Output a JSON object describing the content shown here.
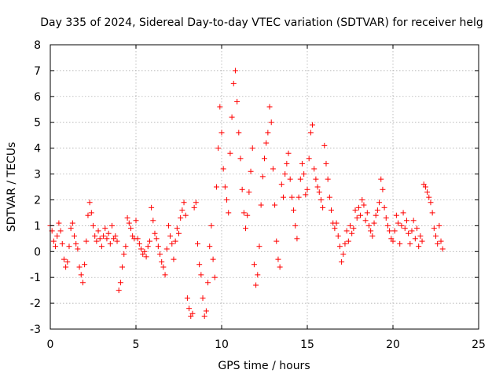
{
  "chart_data": {
    "type": "scatter",
    "title": "Day 335 of 2024, Sidereal Day-to-day VTEC variation (SDTVAR) for receiver helg",
    "xlabel": "GPS time / hours",
    "ylabel": "SDTVAR / TECUs",
    "xlim": [
      0,
      25
    ],
    "ylim": [
      -3,
      8
    ],
    "xticks": [
      "0",
      "5",
      "10",
      "15",
      "20",
      "25"
    ],
    "yticks": [
      "-3",
      "-2",
      "-1",
      "0",
      "1",
      "2",
      "3",
      "4",
      "5",
      "6",
      "7",
      "8"
    ],
    "grid": true,
    "marker": "+",
    "color": "#ff0000",
    "series": [
      {
        "name": "SDTVAR",
        "points": [
          [
            0.0,
            1.0
          ],
          [
            0.1,
            0.8
          ],
          [
            0.2,
            0.4
          ],
          [
            0.3,
            0.2
          ],
          [
            0.4,
            0.6
          ],
          [
            0.5,
            1.1
          ],
          [
            0.6,
            0.8
          ],
          [
            0.7,
            0.3
          ],
          [
            0.8,
            -0.3
          ],
          [
            0.9,
            -0.6
          ],
          [
            1.0,
            -0.4
          ],
          [
            1.1,
            0.2
          ],
          [
            1.2,
            0.9
          ],
          [
            1.3,
            1.1
          ],
          [
            1.4,
            0.6
          ],
          [
            1.5,
            0.3
          ],
          [
            1.6,
            0.1
          ],
          [
            1.7,
            -0.6
          ],
          [
            1.8,
            -0.9
          ],
          [
            1.9,
            -1.2
          ],
          [
            2.0,
            -0.5
          ],
          [
            2.1,
            0.4
          ],
          [
            2.2,
            1.4
          ],
          [
            2.3,
            1.9
          ],
          [
            2.4,
            1.5
          ],
          [
            2.5,
            1.0
          ],
          [
            2.6,
            0.6
          ],
          [
            2.7,
            0.4
          ],
          [
            2.8,
            0.8
          ],
          [
            2.9,
            0.5
          ],
          [
            3.0,
            0.2
          ],
          [
            3.1,
            0.6
          ],
          [
            3.2,
            0.9
          ],
          [
            3.3,
            0.5
          ],
          [
            3.4,
            0.7
          ],
          [
            3.5,
            0.3
          ],
          [
            3.6,
            1.0
          ],
          [
            3.7,
            0.5
          ],
          [
            3.8,
            0.6
          ],
          [
            3.9,
            0.4
          ],
          [
            4.0,
            -1.5
          ],
          [
            4.1,
            -1.2
          ],
          [
            4.2,
            -0.6
          ],
          [
            4.3,
            -0.1
          ],
          [
            4.4,
            0.2
          ],
          [
            4.5,
            1.3
          ],
          [
            4.6,
            1.1
          ],
          [
            4.7,
            0.9
          ],
          [
            4.8,
            0.6
          ],
          [
            4.9,
            0.5
          ],
          [
            5.0,
            1.2
          ],
          [
            5.1,
            0.5
          ],
          [
            5.2,
            0.3
          ],
          [
            5.3,
            0.1
          ],
          [
            5.4,
            -0.1
          ],
          [
            5.5,
            0.0
          ],
          [
            5.6,
            -0.2
          ],
          [
            5.7,
            0.2
          ],
          [
            5.8,
            0.4
          ],
          [
            5.9,
            1.7
          ],
          [
            6.0,
            1.2
          ],
          [
            6.1,
            0.7
          ],
          [
            6.2,
            0.5
          ],
          [
            6.3,
            0.2
          ],
          [
            6.4,
            -0.1
          ],
          [
            6.5,
            -0.4
          ],
          [
            6.6,
            -0.6
          ],
          [
            6.7,
            -0.9
          ],
          [
            6.8,
            0.1
          ],
          [
            6.9,
            1.0
          ],
          [
            7.0,
            0.6
          ],
          [
            7.1,
            0.3
          ],
          [
            7.2,
            -0.3
          ],
          [
            7.3,
            0.4
          ],
          [
            7.4,
            0.9
          ],
          [
            7.5,
            0.7
          ],
          [
            7.6,
            1.3
          ],
          [
            7.7,
            1.6
          ],
          [
            7.8,
            1.9
          ],
          [
            7.9,
            1.4
          ],
          [
            8.0,
            -1.8
          ],
          [
            8.1,
            -2.2
          ],
          [
            8.2,
            -2.5
          ],
          [
            8.3,
            -2.4
          ],
          [
            8.4,
            1.7
          ],
          [
            8.5,
            1.9
          ],
          [
            8.6,
            0.3
          ],
          [
            8.7,
            -0.5
          ],
          [
            8.8,
            -0.9
          ],
          [
            8.9,
            -1.8
          ],
          [
            9.0,
            -2.5
          ],
          [
            9.1,
            -2.3
          ],
          [
            9.2,
            -1.2
          ],
          [
            9.3,
            0.2
          ],
          [
            9.4,
            1.0
          ],
          [
            9.5,
            -0.3
          ],
          [
            9.6,
            -1.0
          ],
          [
            9.7,
            2.5
          ],
          [
            9.8,
            4.0
          ],
          [
            9.9,
            5.6
          ],
          [
            10.0,
            4.6
          ],
          [
            10.1,
            3.2
          ],
          [
            10.2,
            2.5
          ],
          [
            10.3,
            2.0
          ],
          [
            10.4,
            1.5
          ],
          [
            10.5,
            3.8
          ],
          [
            10.6,
            5.2
          ],
          [
            10.7,
            6.5
          ],
          [
            10.8,
            7.0
          ],
          [
            10.9,
            5.8
          ],
          [
            11.0,
            4.6
          ],
          [
            11.1,
            3.6
          ],
          [
            11.2,
            2.4
          ],
          [
            11.3,
            1.5
          ],
          [
            11.4,
            0.9
          ],
          [
            11.5,
            1.4
          ],
          [
            11.6,
            2.3
          ],
          [
            11.7,
            3.1
          ],
          [
            11.8,
            4.0
          ],
          [
            11.9,
            -0.5
          ],
          [
            12.0,
            -1.3
          ],
          [
            12.1,
            -0.9
          ],
          [
            12.2,
            0.2
          ],
          [
            12.3,
            1.8
          ],
          [
            12.4,
            2.9
          ],
          [
            12.5,
            3.6
          ],
          [
            12.6,
            4.2
          ],
          [
            12.7,
            4.6
          ],
          [
            12.8,
            5.6
          ],
          [
            12.9,
            5.0
          ],
          [
            13.0,
            3.2
          ],
          [
            13.1,
            1.8
          ],
          [
            13.2,
            0.4
          ],
          [
            13.3,
            -0.3
          ],
          [
            13.4,
            -0.6
          ],
          [
            13.5,
            2.6
          ],
          [
            13.6,
            2.1
          ],
          [
            13.7,
            3.0
          ],
          [
            13.8,
            3.4
          ],
          [
            13.9,
            3.8
          ],
          [
            14.0,
            2.8
          ],
          [
            14.1,
            2.1
          ],
          [
            14.2,
            1.6
          ],
          [
            14.3,
            1.0
          ],
          [
            14.4,
            0.5
          ],
          [
            14.5,
            2.1
          ],
          [
            14.6,
            2.8
          ],
          [
            14.7,
            3.4
          ],
          [
            14.8,
            3.0
          ],
          [
            14.9,
            2.2
          ],
          [
            15.0,
            2.4
          ],
          [
            15.1,
            3.6
          ],
          [
            15.2,
            4.6
          ],
          [
            15.3,
            4.9
          ],
          [
            15.4,
            3.2
          ],
          [
            15.5,
            2.8
          ],
          [
            15.6,
            2.5
          ],
          [
            15.7,
            2.3
          ],
          [
            15.8,
            2.0
          ],
          [
            15.9,
            1.7
          ],
          [
            16.0,
            4.1
          ],
          [
            16.1,
            3.4
          ],
          [
            16.2,
            2.8
          ],
          [
            16.3,
            2.1
          ],
          [
            16.4,
            1.6
          ],
          [
            16.5,
            1.1
          ],
          [
            16.6,
            0.9
          ],
          [
            16.7,
            1.1
          ],
          [
            16.8,
            0.6
          ],
          [
            16.9,
            0.2
          ],
          [
            17.0,
            -0.4
          ],
          [
            17.1,
            -0.1
          ],
          [
            17.2,
            0.3
          ],
          [
            17.3,
            0.8
          ],
          [
            17.4,
            0.4
          ],
          [
            17.5,
            1.0
          ],
          [
            17.6,
            0.7
          ],
          [
            17.7,
            0.9
          ],
          [
            17.8,
            1.6
          ],
          [
            17.9,
            1.3
          ],
          [
            18.0,
            1.7
          ],
          [
            18.1,
            1.4
          ],
          [
            18.2,
            2.0
          ],
          [
            18.3,
            1.8
          ],
          [
            18.4,
            1.2
          ],
          [
            18.5,
            1.5
          ],
          [
            18.6,
            1.0
          ],
          [
            18.7,
            0.8
          ],
          [
            18.8,
            0.6
          ],
          [
            18.9,
            1.1
          ],
          [
            19.0,
            1.4
          ],
          [
            19.1,
            1.6
          ],
          [
            19.2,
            1.9
          ],
          [
            19.3,
            2.8
          ],
          [
            19.4,
            2.4
          ],
          [
            19.5,
            1.7
          ],
          [
            19.6,
            1.3
          ],
          [
            19.7,
            1.0
          ],
          [
            19.8,
            0.8
          ],
          [
            19.9,
            0.5
          ],
          [
            20.0,
            0.4
          ],
          [
            20.1,
            0.8
          ],
          [
            20.2,
            1.4
          ],
          [
            20.3,
            1.1
          ],
          [
            20.4,
            0.3
          ],
          [
            20.5,
            1.0
          ],
          [
            20.6,
            1.5
          ],
          [
            20.7,
            0.9
          ],
          [
            20.8,
            1.2
          ],
          [
            20.9,
            0.7
          ],
          [
            21.0,
            0.3
          ],
          [
            21.1,
            0.8
          ],
          [
            21.2,
            1.2
          ],
          [
            21.3,
            0.5
          ],
          [
            21.4,
            0.9
          ],
          [
            21.5,
            0.2
          ],
          [
            21.6,
            0.6
          ],
          [
            21.7,
            0.4
          ],
          [
            21.8,
            2.6
          ],
          [
            21.9,
            2.5
          ],
          [
            22.0,
            2.3
          ],
          [
            22.1,
            2.1
          ],
          [
            22.2,
            1.9
          ],
          [
            22.3,
            1.5
          ],
          [
            22.4,
            0.9
          ],
          [
            22.5,
            0.6
          ],
          [
            22.6,
            0.3
          ],
          [
            22.7,
            1.0
          ],
          [
            22.8,
            0.4
          ],
          [
            22.9,
            0.1
          ]
        ]
      }
    ]
  }
}
